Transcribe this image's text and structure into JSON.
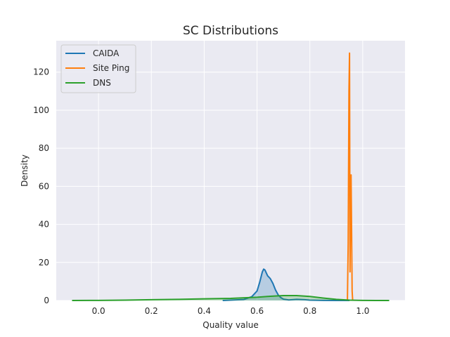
{
  "chart_data": {
    "type": "line",
    "title": "SC Distributions",
    "xlabel": "Quality value",
    "ylabel": "Density",
    "xlim": [
      -0.16,
      1.16
    ],
    "ylim": [
      0,
      136.5
    ],
    "xticks": [
      0.0,
      0.2,
      0.4,
      0.6,
      0.8,
      1.0
    ],
    "xtick_labels": [
      "0.0",
      "0.2",
      "0.4",
      "0.6",
      "0.8",
      "1.0"
    ],
    "yticks": [
      0,
      20,
      40,
      60,
      80,
      100,
      120
    ],
    "ytick_labels": [
      "0",
      "20",
      "40",
      "60",
      "80",
      "100",
      "120"
    ],
    "grid": true,
    "background": "#eaeaf2",
    "legend_position": "top-left",
    "series": [
      {
        "name": "CAIDA",
        "color": "#1f77b4",
        "fill": true,
        "x": [
          0.47,
          0.55,
          0.58,
          0.6,
          0.61,
          0.62,
          0.625,
          0.63,
          0.64,
          0.65,
          0.66,
          0.67,
          0.68,
          0.69,
          0.7,
          0.72,
          0.75,
          0.78,
          0.8,
          0.85,
          0.9,
          0.95
        ],
        "y": [
          0.0,
          0.5,
          2.0,
          5.0,
          9.5,
          15.0,
          16.5,
          16.0,
          13.0,
          11.5,
          9.0,
          5.5,
          3.0,
          1.5,
          0.7,
          0.3,
          0.6,
          0.4,
          0.2,
          0.05,
          0.0,
          0.0
        ]
      },
      {
        "name": "Site Ping",
        "color": "#ff7f0e",
        "fill": false,
        "x": [
          0.942,
          0.945,
          0.948,
          0.95,
          0.952,
          0.954,
          0.956,
          0.958,
          0.96,
          0.962
        ],
        "y": [
          0.0,
          30.0,
          110.0,
          130.0,
          15.0,
          50.0,
          66.0,
          35.0,
          5.0,
          0.0
        ]
      },
      {
        "name": "DNS",
        "color": "#2ca02c",
        "fill": true,
        "x": [
          -0.1,
          0.0,
          0.1,
          0.2,
          0.3,
          0.4,
          0.5,
          0.6,
          0.65,
          0.7,
          0.75,
          0.8,
          0.85,
          0.9,
          0.95,
          1.0,
          1.05,
          1.1
        ],
        "y": [
          0.0,
          0.05,
          0.2,
          0.4,
          0.6,
          0.9,
          1.1,
          1.7,
          2.2,
          2.6,
          2.6,
          2.1,
          1.3,
          0.6,
          0.2,
          0.05,
          0.0,
          0.0
        ]
      }
    ]
  }
}
